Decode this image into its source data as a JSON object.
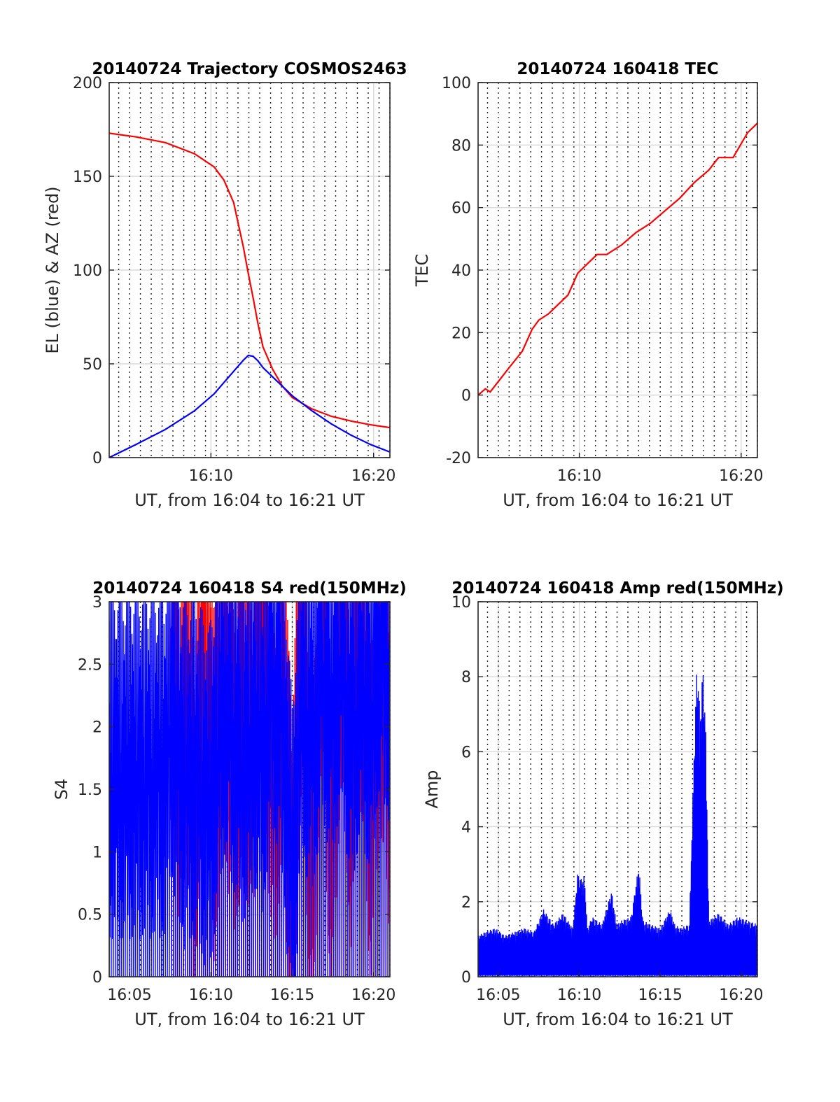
{
  "chart_data": [
    {
      "id": "trajectory",
      "type": "line",
      "title": "20140724 Trajectory COSMOS2463",
      "xlabel": "UT, from 16:04 to 16:21 UT",
      "ylabel": "EL (blue) & AZ (red)",
      "xlim": [
        16.0625,
        16.35
      ],
      "ylim": [
        0,
        200
      ],
      "xticks": [
        {
          "value": 16.1667,
          "label": "16:10"
        },
        {
          "value": 16.3333,
          "label": "16:20"
        }
      ],
      "yticks": [
        {
          "value": 0,
          "label": "0"
        },
        {
          "value": 50,
          "label": "50"
        },
        {
          "value": 100,
          "label": "100"
        },
        {
          "value": 150,
          "label": "150"
        },
        {
          "value": 200,
          "label": "200"
        }
      ],
      "grid": true,
      "series": [
        {
          "color": "#ff0000",
          "x": [
            16.0625,
            16.09,
            16.12,
            16.15,
            16.17,
            16.18,
            16.19,
            16.2,
            16.205,
            16.21,
            16.215,
            16.22,
            16.23,
            16.24,
            16.25,
            16.27,
            16.29,
            16.31,
            16.33,
            16.35
          ],
          "y": [
            173,
            171,
            168,
            162,
            155,
            148,
            136,
            112,
            98,
            85,
            71,
            59,
            47,
            38,
            32,
            26,
            22,
            19.5,
            17.5,
            16
          ]
        },
        {
          "color": "#0000ff",
          "x": [
            16.0625,
            16.09,
            16.12,
            16.15,
            16.17,
            16.19,
            16.2,
            16.205,
            16.21,
            16.215,
            16.22,
            16.23,
            16.25,
            16.27,
            16.29,
            16.31,
            16.33,
            16.35
          ],
          "y": [
            0,
            7,
            15,
            25,
            34,
            46,
            52,
            54.5,
            54,
            51.5,
            48,
            43,
            33,
            25,
            18,
            12,
            7,
            3
          ]
        }
      ]
    },
    {
      "id": "tec",
      "type": "line",
      "title": "20140724 160418 TEC",
      "xlabel": "UT, from 16:04 to 16:21 UT",
      "ylabel": "TEC",
      "xlim": [
        16.0625,
        16.35
      ],
      "ylim": [
        -20,
        100
      ],
      "xticks": [
        {
          "value": 16.1667,
          "label": "16:10"
        },
        {
          "value": 16.3333,
          "label": "16:20"
        }
      ],
      "yticks": [
        {
          "value": -20,
          "label": "-20"
        },
        {
          "value": 0,
          "label": "0"
        },
        {
          "value": 20,
          "label": "20"
        },
        {
          "value": 40,
          "label": "40"
        },
        {
          "value": 60,
          "label": "60"
        },
        {
          "value": 80,
          "label": "80"
        },
        {
          "value": 100,
          "label": "100"
        }
      ],
      "grid": true,
      "series": [
        {
          "color": "#ff0000",
          "x": [
            16.0625,
            16.07,
            16.075,
            16.085,
            16.095,
            16.108,
            16.118,
            16.125,
            16.135,
            16.145,
            16.155,
            16.165,
            16.175,
            16.185,
            16.195,
            16.21,
            16.225,
            16.24,
            16.255,
            16.27,
            16.285,
            16.3,
            16.31,
            16.325,
            16.34,
            16.35
          ],
          "y": [
            0,
            2,
            1,
            5,
            9,
            14,
            21,
            24,
            26,
            29,
            32,
            39,
            42,
            45,
            45,
            48,
            52,
            55,
            59,
            63,
            68,
            72,
            76,
            76,
            84,
            87
          ]
        }
      ]
    },
    {
      "id": "s4",
      "type": "line",
      "title": "20140724 160418 S4 red(150MHz)",
      "xlabel": "UT, from 16:04 to 16:21 UT",
      "ylabel": "S4",
      "xlim": [
        16.0625,
        16.35
      ],
      "ylim": [
        0,
        3
      ],
      "xticks": [
        {
          "value": 16.0833,
          "label": "16:05"
        },
        {
          "value": 16.1667,
          "label": "16:10"
        },
        {
          "value": 16.25,
          "label": "16:15"
        },
        {
          "value": 16.3333,
          "label": "16:20"
        }
      ],
      "yticks": [
        {
          "value": 0,
          "label": "0"
        },
        {
          "value": 0.5,
          "label": "0.5"
        },
        {
          "value": 1,
          "label": "1"
        },
        {
          "value": 1.5,
          "label": "1.5"
        },
        {
          "value": 2,
          "label": "2"
        },
        {
          "value": 2.5,
          "label": "2.5"
        },
        {
          "value": 3,
          "label": "3"
        }
      ],
      "grid": true,
      "series": [
        {
          "color": "#ff0000",
          "x": [
            16.125,
            16.13,
            16.135,
            16.14,
            16.15,
            16.16,
            16.17,
            16.18,
            16.19,
            16.2,
            16.21,
            16.22,
            16.23,
            16.24,
            16.25,
            16.26,
            16.27,
            16.28,
            16.29,
            16.3,
            16.31,
            16.32,
            16.33,
            16.34,
            16.35
          ],
          "y": [
            1.7,
            2.6,
            1.2,
            2.4,
            1.0,
            2.8,
            1.3,
            2.2,
            1.5,
            2.0,
            1.6,
            2.9,
            1.2,
            2.1,
            0.5,
            2.8,
            0.3,
            2.9,
            0.8,
            2.7,
            1.4,
            2.6,
            1.1,
            2.4,
            1.5
          ]
        },
        {
          "color": "#0000ff",
          "x": [
            16.0625,
            16.08,
            16.1,
            16.12,
            16.125,
            16.14,
            16.15,
            16.16,
            16.165,
            16.175,
            16.18,
            16.2,
            16.21,
            16.22,
            16.23,
            16.24,
            16.25,
            16.26,
            16.27,
            16.28,
            16.29,
            16.3,
            16.31,
            16.32,
            16.33,
            16.34,
            16.35
          ],
          "y": [
            1.5,
            1.5,
            1.5,
            1.5,
            2.0,
            1.4,
            1.5,
            1.3,
            1.2,
            1.8,
            2.2,
            1.6,
            1.9,
            1.7,
            2.4,
            2.0,
            0.6,
            2.2,
            1.8,
            2.5,
            2.1,
            2.6,
            1.9,
            2.3,
            2.0,
            2.7,
            2.4
          ]
        }
      ]
    },
    {
      "id": "amp",
      "type": "line",
      "title": "20140724 160418 Amp red(150MHz)",
      "xlabel": "UT, from 16:04 to 16:21 UT",
      "ylabel": "Amp",
      "xlim": [
        16.0625,
        16.35
      ],
      "ylim": [
        0,
        10
      ],
      "xticks": [
        {
          "value": 16.0833,
          "label": "16:05"
        },
        {
          "value": 16.1667,
          "label": "16:10"
        },
        {
          "value": 16.25,
          "label": "16:15"
        },
        {
          "value": 16.3333,
          "label": "16:20"
        }
      ],
      "yticks": [
        {
          "value": 0,
          "label": "0"
        },
        {
          "value": 2,
          "label": "2"
        },
        {
          "value": 4,
          "label": "4"
        },
        {
          "value": 6,
          "label": "6"
        },
        {
          "value": 8,
          "label": "8"
        },
        {
          "value": 10,
          "label": "10"
        }
      ],
      "grid": true,
      "series": [
        {
          "color": "#0000ff",
          "x": [
            16.0625,
            16.07,
            16.08,
            16.09,
            16.1,
            16.11,
            16.12,
            16.13,
            16.14,
            16.15,
            16.16,
            16.165,
            16.168,
            16.172,
            16.175,
            16.18,
            16.19,
            16.2,
            16.205,
            16.21,
            16.22,
            16.228,
            16.232,
            16.24,
            16.25,
            16.26,
            16.265,
            16.27,
            16.28,
            16.285,
            16.288,
            16.291,
            16.294,
            16.297,
            16.3,
            16.31,
            16.32,
            16.33,
            16.34,
            16.35
          ],
          "y": [
            1.1,
            1.2,
            1.3,
            1.1,
            1.2,
            1.3,
            1.2,
            1.8,
            1.4,
            1.7,
            1.3,
            2.8,
            2.6,
            2.7,
            1.3,
            1.6,
            1.4,
            2.3,
            1.4,
            1.5,
            1.6,
            3.0,
            1.5,
            1.4,
            1.3,
            1.8,
            1.4,
            1.3,
            1.4,
            6.2,
            8.5,
            7.0,
            8.3,
            6.5,
            1.5,
            1.7,
            1.4,
            1.6,
            1.5,
            1.4
          ]
        }
      ]
    }
  ]
}
